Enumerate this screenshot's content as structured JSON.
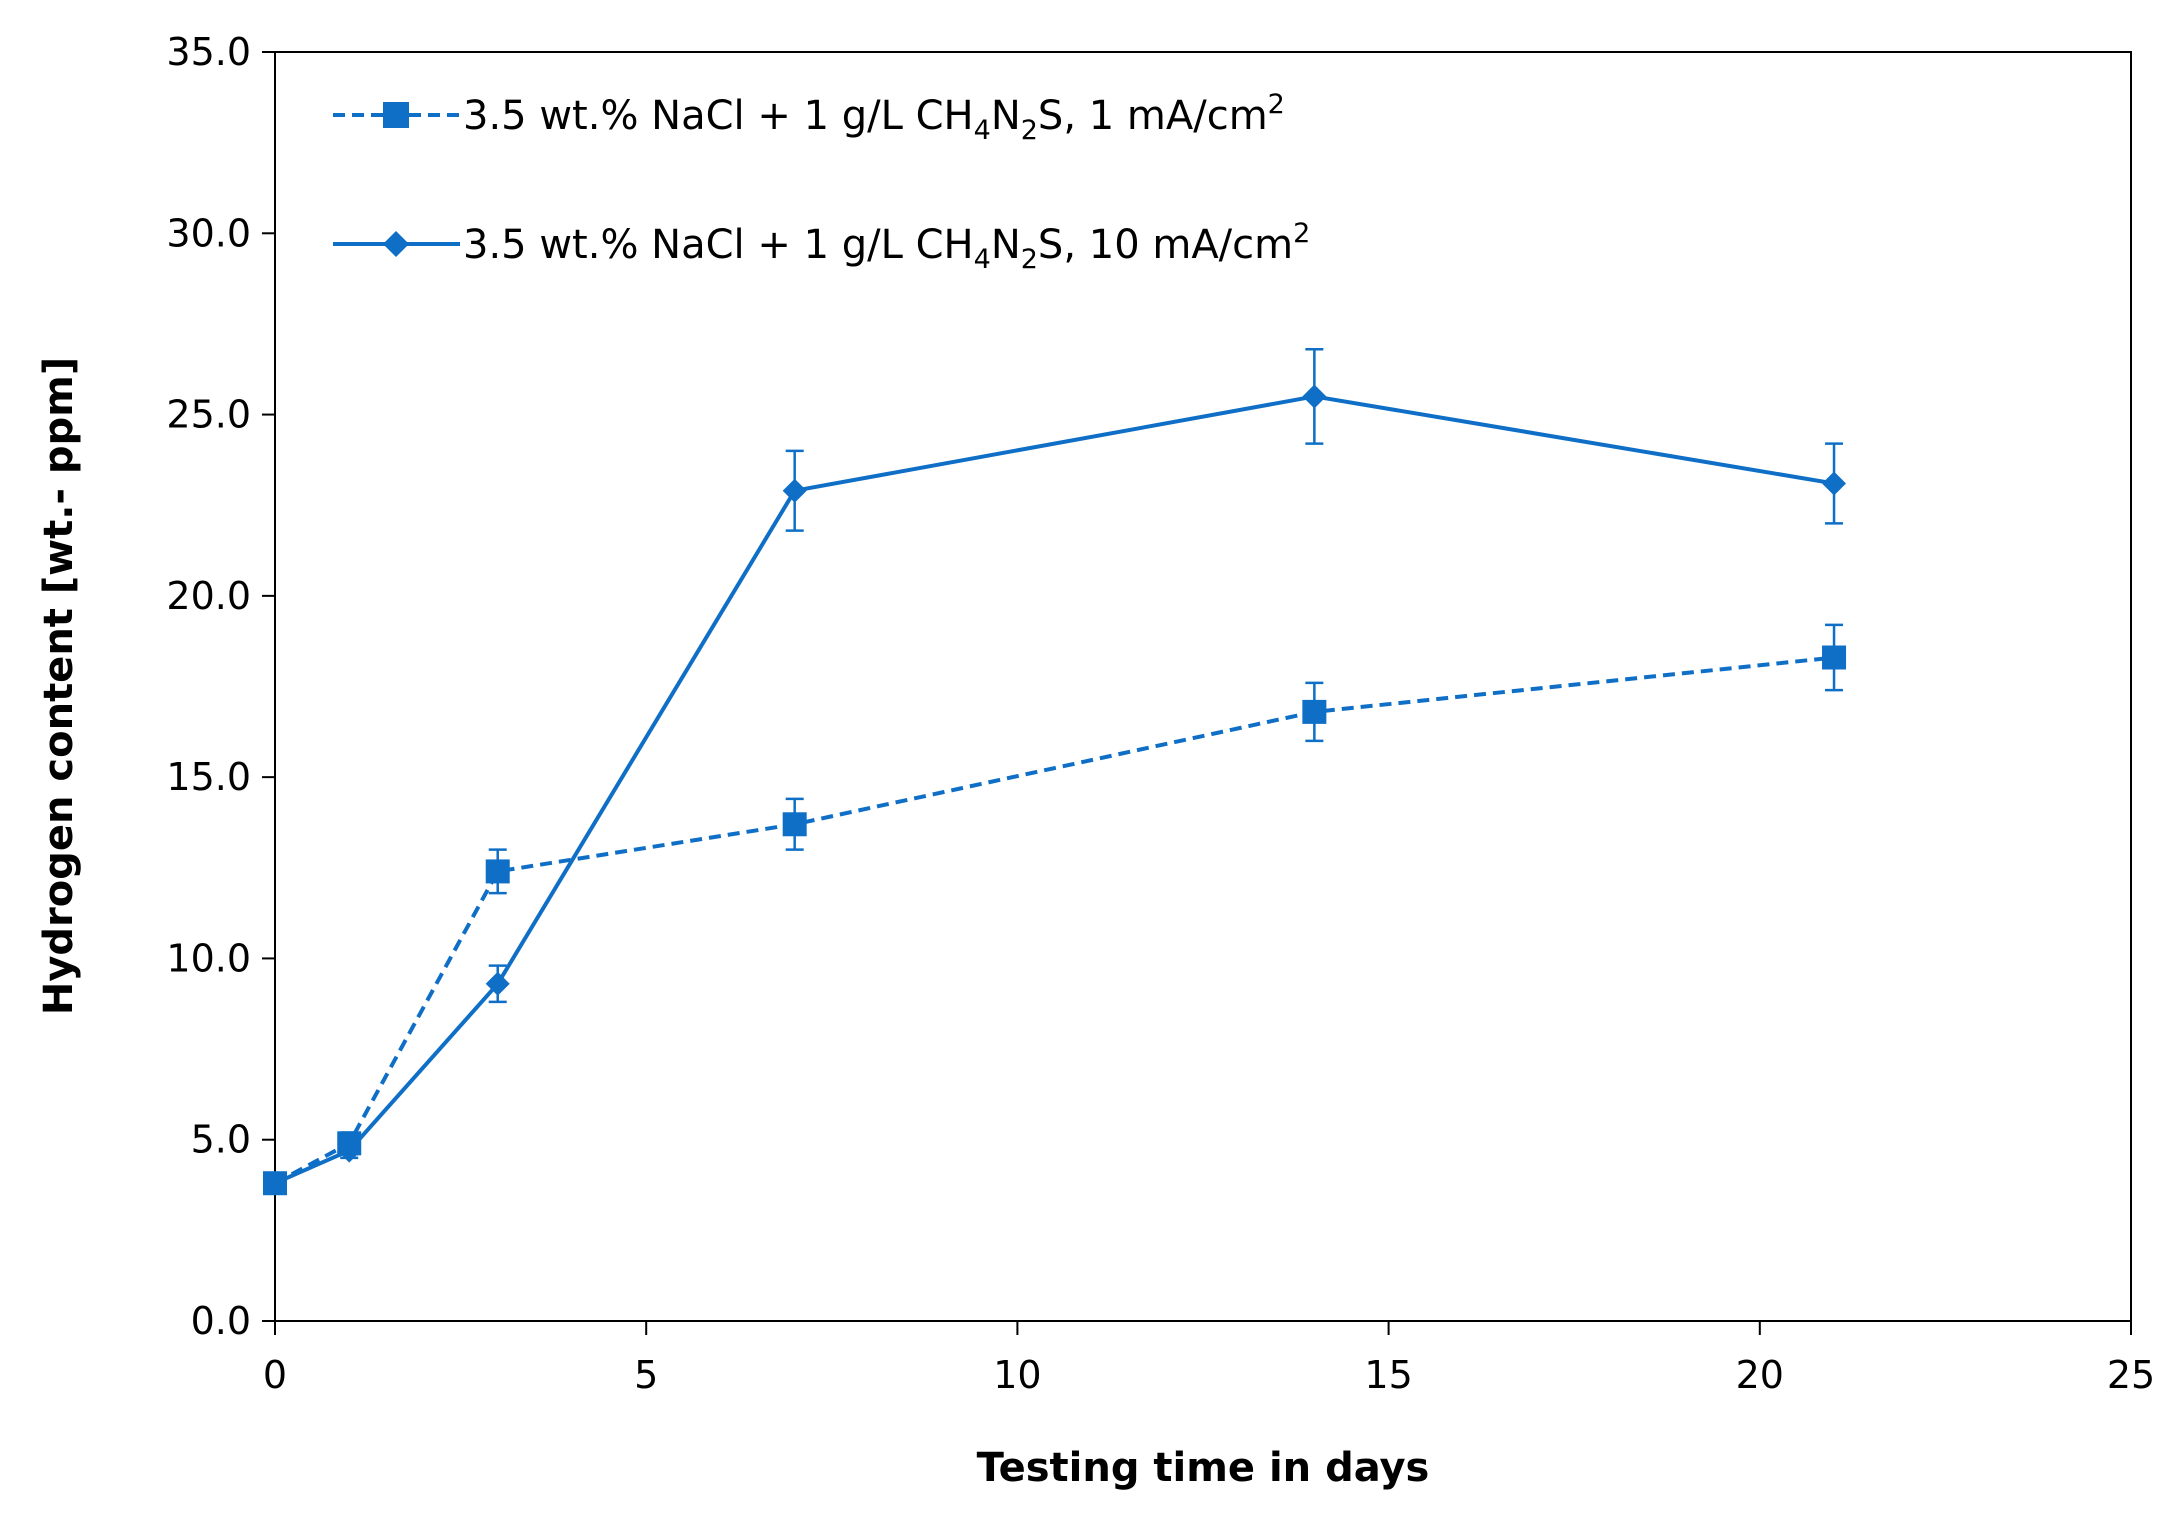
{
  "chart_data": {
    "type": "line",
    "title": "",
    "xlabel": "Testing time in days",
    "ylabel": "Hydrogen content [wt.- ppm]",
    "xlim": [
      0,
      25
    ],
    "ylim": [
      0,
      35
    ],
    "xticks": [
      0,
      5,
      10,
      15,
      20,
      25
    ],
    "yticks": [
      0,
      5,
      10,
      15,
      20,
      25,
      30,
      35
    ],
    "x_tick_labels": [
      "0",
      "5",
      "10",
      "15",
      "20",
      "25"
    ],
    "y_tick_labels": [
      "0.0",
      "5.0",
      "10.0",
      "15.0",
      "20.0",
      "25.0",
      "30.0",
      "35.0"
    ],
    "grid": false,
    "legend_position": "top-left",
    "series": [
      {
        "name": "3.5 wt.% NaCl + 1 g/L CH4N2S, 1 mA/cm2",
        "legend_parts": {
          "pre": "3.5 wt.% NaCl + 1 g/L CH",
          "sub1": "4",
          "mid1": "N",
          "sub2": "2",
          "mid2": "S, 1 mA/cm",
          "sup": "2"
        },
        "marker": "square",
        "line_style": "dashed",
        "color": "#0f6fc6",
        "x": [
          0,
          1,
          3,
          7,
          14,
          21
        ],
        "y": [
          3.8,
          4.9,
          12.4,
          13.7,
          16.8,
          18.3
        ],
        "error": [
          0.2,
          0.3,
          0.6,
          0.7,
          0.8,
          0.9
        ]
      },
      {
        "name": "3.5 wt.% NaCl + 1 g/L CH4N2S, 10 mA/cm2",
        "legend_parts": {
          "pre": "3.5 wt.% NaCl + 1 g/L CH",
          "sub1": "4",
          "mid1": "N",
          "sub2": "2",
          "mid2": "S, 10 mA/cm",
          "sup": "2"
        },
        "marker": "diamond",
        "line_style": "solid",
        "color": "#0f6fc6",
        "x": [
          0,
          1,
          3,
          7,
          14,
          21
        ],
        "y": [
          3.8,
          4.7,
          9.3,
          22.9,
          25.5,
          23.1
        ],
        "error": [
          0.2,
          0.2,
          0.5,
          1.1,
          1.3,
          1.1
        ]
      }
    ]
  }
}
